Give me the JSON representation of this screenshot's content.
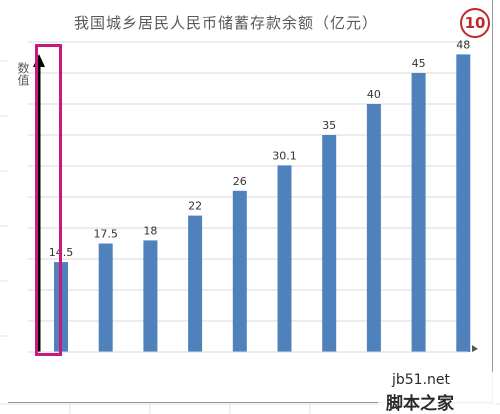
{
  "title": "我国城乡居民人民币储蓄存款余额（亿元）",
  "badge": "10",
  "y_axis_title": "数值",
  "watermark": {
    "url": "jb51.net",
    "site": "脚本之家"
  },
  "colors": {
    "bar": "#4f81bd",
    "gridline": "#d9d9d9",
    "highlight": "#c8197f",
    "badge": "#c0282d"
  },
  "chart_data": {
    "type": "bar",
    "title": "我国城乡居民人民币储蓄存款余额（亿元）",
    "ylabel": "数值",
    "xlabel": "",
    "ylim": [
      0,
      50
    ],
    "grid": true,
    "legend": "none",
    "values": [
      14.5,
      17.5,
      18,
      22,
      26,
      30.1,
      35,
      40,
      45,
      48
    ],
    "labels": [
      "14.5",
      "17.5",
      "18",
      "22",
      "26",
      "30.1",
      "35",
      "40",
      "45",
      "48"
    ]
  }
}
